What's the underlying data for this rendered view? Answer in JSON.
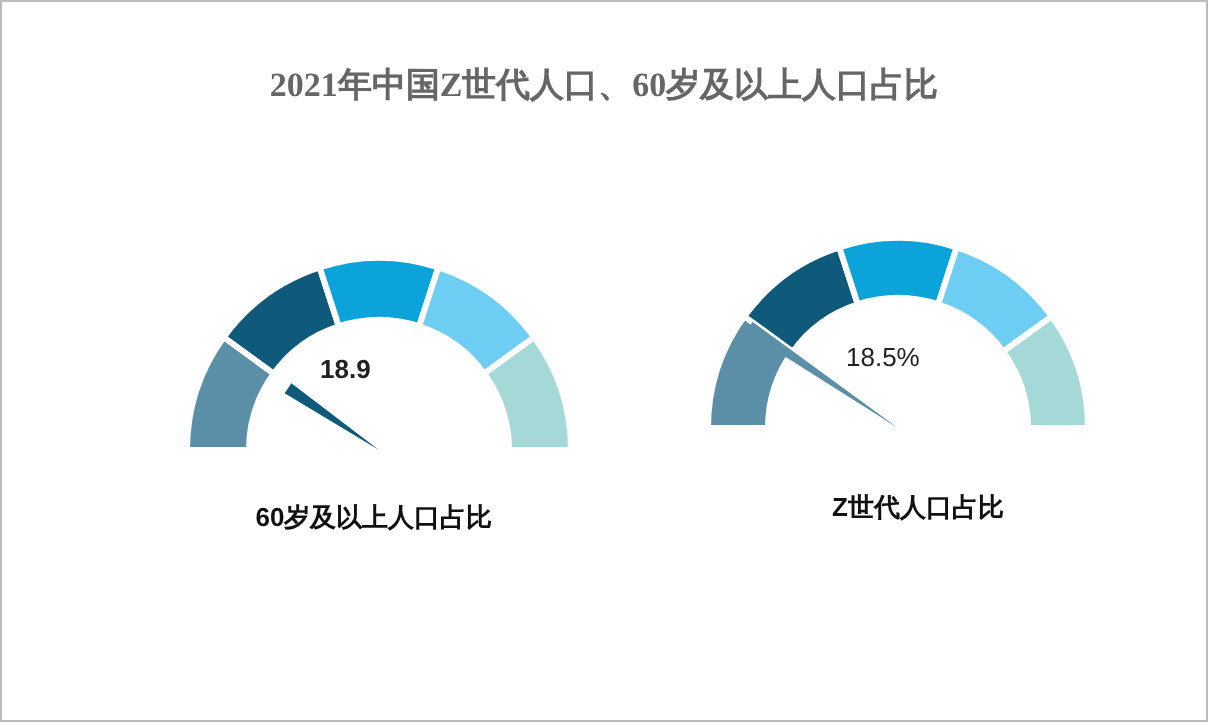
{
  "chart_data": [
    {
      "type": "other",
      "title": "2021年中国Z世代人口、60岁及以上人口占比"
    },
    {
      "type": "other",
      "title": "60岁及以上人口占比",
      "values": [
        18.9
      ],
      "data_labels": true
    },
    {
      "type": "other",
      "title": "Z世代人口占比",
      "values": [
        18.5
      ],
      "value_labels": [
        "18.5%"
      ]
    }
  ]
}
